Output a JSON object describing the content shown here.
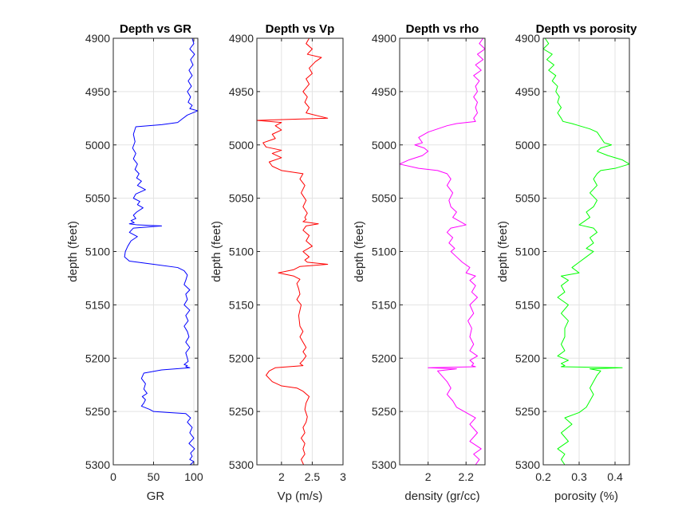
{
  "chart_data": [
    {
      "type": "line",
      "title": "Depth vs GR",
      "xlabel": "GR",
      "ylabel": "depth (feet)",
      "xlim": [
        0,
        105
      ],
      "ylim": [
        4900,
        5300
      ],
      "y_reversed": true,
      "grid": true,
      "xticks": [
        0,
        50,
        100
      ],
      "xtick_labels": [
        "0",
        "50",
        "100"
      ],
      "yticks": [
        4900,
        4950,
        5000,
        5050,
        5100,
        5150,
        5200,
        5250,
        5300
      ],
      "ytick_labels": [
        "4900",
        "4950",
        "5000",
        "5050",
        "5100",
        "5150",
        "5200",
        "5250",
        "5300"
      ],
      "series": [
        {
          "color": "#0000ff",
          "x": [
            98,
            100,
            95,
            101,
            96,
            99,
            94,
            98,
            93,
            97,
            92,
            96,
            93,
            98,
            95,
            105,
            92,
            85,
            80,
            60,
            28,
            25,
            27,
            24,
            28,
            25,
            30,
            27,
            32,
            29,
            35,
            30,
            40,
            28,
            25,
            33,
            30,
            37,
            29,
            25,
            28,
            22,
            26,
            20,
            30,
            60,
            25,
            20,
            30,
            22,
            18,
            15,
            14,
            20,
            50,
            80,
            88,
            92,
            90,
            88,
            95,
            90,
            92,
            88,
            95,
            90,
            93,
            88,
            92,
            94,
            90,
            95,
            90,
            92,
            93,
            88,
            92,
            90,
            95,
            60,
            38,
            35,
            40,
            38,
            42,
            36,
            40,
            38,
            35,
            45,
            50,
            70,
            90,
            96,
            92,
            98,
            95,
            100,
            94,
            101,
            96,
            98,
            95,
            100,
            97,
            95
          ],
          "y": [
            4900,
            4905,
            4910,
            4915,
            4920,
            4925,
            4930,
            4935,
            4940,
            4945,
            4950,
            4955,
            4960,
            4963,
            4966,
            4968,
            4972,
            4976,
            4979,
            4981,
            4983,
            4990,
            4997,
            5003,
            5008,
            5013,
            5018,
            5023,
            5027,
            5031,
            5034,
            5038,
            5042,
            5046,
            5050,
            5053,
            5056,
            5059,
            5063,
            5066,
            5069,
            5071,
            5073,
            5074,
            5075,
            5076,
            5078,
            5082,
            5086,
            5090,
            5095,
            5100,
            5105,
            5109,
            5112,
            5115,
            5118,
            5122,
            5127,
            5131,
            5136,
            5140,
            5145,
            5150,
            5155,
            5160,
            5165,
            5170,
            5175,
            5180,
            5185,
            5190,
            5195,
            5200,
            5203,
            5206,
            5207,
            5208,
            5209,
            5211,
            5214,
            5219,
            5224,
            5229,
            5233,
            5236,
            5239,
            5242,
            5245,
            5248,
            5250,
            5251,
            5252,
            5256,
            5260,
            5265,
            5270,
            5275,
            5280,
            5285,
            5289,
            5292,
            5295,
            5297,
            5299,
            5300
          ]
        }
      ]
    },
    {
      "type": "line",
      "title": "Depth vs Vp",
      "xlabel": "Vp (m/s)",
      "ylabel": "depth (feet)",
      "xlim": [
        1.6,
        3.0
      ],
      "ylim": [
        4900,
        5300
      ],
      "y_reversed": true,
      "grid": true,
      "xticks": [
        2,
        2.5,
        3
      ],
      "xtick_labels": [
        "2",
        "2.5",
        "3"
      ],
      "yticks": [
        4900,
        4950,
        5000,
        5050,
        5100,
        5150,
        5200,
        5250,
        5300
      ],
      "ytick_labels": [
        "4900",
        "4950",
        "5000",
        "5050",
        "5100",
        "5150",
        "5200",
        "5250",
        "5300"
      ],
      "series": [
        {
          "color": "#ff0000",
          "x": [
            2.45,
            2.4,
            2.5,
            2.42,
            2.65,
            2.55,
            2.45,
            2.5,
            2.4,
            2.45,
            2.35,
            2.42,
            2.38,
            2.45,
            2.4,
            2.75,
            1.6,
            2.0,
            1.9,
            2.0,
            1.85,
            1.9,
            1.7,
            1.75,
            2.0,
            1.85,
            2.0,
            1.8,
            1.85,
            2.0,
            2.35,
            2.3,
            2.38,
            2.32,
            2.4,
            2.35,
            2.42,
            2.38,
            2.4,
            2.35,
            2.6,
            2.4,
            2.35,
            2.45,
            2.4,
            2.5,
            2.35,
            2.45,
            2.38,
            2.42,
            2.75,
            2.3,
            2.2,
            1.95,
            2.2,
            2.3,
            2.25,
            2.28,
            2.3,
            2.25,
            2.32,
            2.28,
            2.3,
            2.35,
            2.3,
            2.35,
            2.4,
            2.35,
            2.4,
            2.35,
            2.3,
            2.35,
            1.9,
            1.8,
            1.75,
            1.85,
            2.0,
            2.25,
            2.35,
            2.45,
            2.4,
            2.38,
            2.42,
            2.4,
            2.35,
            2.38,
            2.32,
            2.38,
            2.35,
            2.38,
            2.32,
            2.36
          ],
          "y": [
            4900,
            4905,
            4910,
            4915,
            4918,
            4922,
            4928,
            4933,
            4938,
            4943,
            4950,
            4955,
            4960,
            4965,
            4970,
            4975,
            4977,
            4979,
            4982,
            4986,
            4990,
            4994,
            4998,
            5002,
            5005,
            5008,
            5012,
            5016,
            5020,
            5024,
            5027,
            5032,
            5038,
            5045,
            5052,
            5058,
            5064,
            5068,
            5070,
            5072,
            5074,
            5076,
            5080,
            5085,
            5090,
            5095,
            5100,
            5105,
            5108,
            5110,
            5112,
            5114,
            5117,
            5120,
            5123,
            5126,
            5130,
            5135,
            5140,
            5145,
            5150,
            5160,
            5170,
            5175,
            5180,
            5185,
            5190,
            5194,
            5198,
            5202,
            5205,
            5207,
            5209,
            5212,
            5216,
            5222,
            5226,
            5228,
            5231,
            5236,
            5242,
            5248,
            5255,
            5260,
            5265,
            5270,
            5275,
            5280,
            5285,
            5290,
            5295,
            5300
          ]
        }
      ]
    },
    {
      "type": "line",
      "title": "Depth vs rho",
      "xlabel": "density (gr/cc)",
      "ylabel": "depth (feet)",
      "xlim": [
        1.85,
        2.3
      ],
      "ylim": [
        4900,
        5300
      ],
      "y_reversed": true,
      "grid": true,
      "xticks": [
        2,
        2.2
      ],
      "xtick_labels": [
        "2",
        "2.2"
      ],
      "yticks": [
        4900,
        4950,
        5000,
        5050,
        5100,
        5150,
        5200,
        5250,
        5300
      ],
      "ytick_labels": [
        "4900",
        "4950",
        "5000",
        "5050",
        "5100",
        "5150",
        "5200",
        "5250",
        "5300"
      ],
      "series": [
        {
          "color": "#ff00ff",
          "x": [
            2.29,
            2.27,
            2.3,
            2.26,
            2.29,
            2.25,
            2.28,
            2.24,
            2.27,
            2.25,
            2.26,
            2.24,
            2.26,
            2.25,
            2.26,
            2.24,
            2.25,
            2.15,
            2.1,
            2.05,
            2.0,
            1.95,
            1.97,
            1.93,
            1.98,
            2.0,
            1.97,
            1.9,
            1.85,
            1.95,
            2.05,
            2.1,
            2.12,
            2.1,
            2.13,
            2.11,
            2.12,
            2.15,
            2.13,
            2.2,
            2.12,
            2.1,
            2.13,
            2.11,
            2.14,
            2.12,
            2.15,
            2.18,
            2.22,
            2.2,
            2.25,
            2.22,
            2.25,
            2.23,
            2.26,
            2.22,
            2.24,
            2.21,
            2.23,
            2.22,
            2.24,
            2.22,
            2.26,
            2.22,
            2.24,
            2.23,
            2.25,
            2.0,
            2.15,
            2.05,
            2.07,
            2.1,
            2.12,
            2.1,
            2.13,
            2.15,
            2.2,
            2.25,
            2.22,
            2.26,
            2.22,
            2.28,
            2.24,
            2.27,
            2.25
          ],
          "y": [
            4900,
            4905,
            4910,
            4915,
            4920,
            4925,
            4930,
            4935,
            4940,
            4945,
            4950,
            4955,
            4960,
            4965,
            4970,
            4975,
            4978,
            4980,
            4982,
            4985,
            4988,
            4993,
            4998,
            5000,
            5003,
            5006,
            5010,
            5014,
            5018,
            5022,
            5024,
            5027,
            5032,
            5038,
            5045,
            5052,
            5058,
            5063,
            5068,
            5075,
            5078,
            5082,
            5087,
            5092,
            5097,
            5100,
            5105,
            5110,
            5115,
            5120,
            5123,
            5127,
            5132,
            5138,
            5143,
            5150,
            5158,
            5165,
            5172,
            5180,
            5187,
            5193,
            5198,
            5202,
            5205,
            5207,
            5208,
            5209,
            5210,
            5212,
            5216,
            5222,
            5228,
            5234,
            5240,
            5246,
            5251,
            5256,
            5262,
            5270,
            5278,
            5285,
            5290,
            5295,
            5300
          ]
        }
      ]
    },
    {
      "type": "line",
      "title": "Depth vs porosity",
      "xlabel": "porosity (%)",
      "ylabel": "depth (feet)",
      "xlim": [
        0.2,
        0.44
      ],
      "ylim": [
        4900,
        5300
      ],
      "y_reversed": true,
      "grid": true,
      "xticks": [
        0.2,
        0.3,
        0.4
      ],
      "xtick_labels": [
        "0.2",
        "0.3",
        "0.4"
      ],
      "yticks": [
        4900,
        4950,
        5000,
        5050,
        5100,
        5150,
        5200,
        5250,
        5300
      ],
      "ytick_labels": [
        "4900",
        "4950",
        "5000",
        "5050",
        "5100",
        "5150",
        "5200",
        "5250",
        "5300"
      ],
      "series": [
        {
          "color": "#00ff00",
          "x": [
            0.205,
            0.215,
            0.2,
            0.225,
            0.21,
            0.23,
            0.215,
            0.235,
            0.225,
            0.24,
            0.235,
            0.245,
            0.24,
            0.25,
            0.24,
            0.25,
            0.255,
            0.28,
            0.3,
            0.33,
            0.35,
            0.36,
            0.37,
            0.39,
            0.36,
            0.35,
            0.38,
            0.42,
            0.44,
            0.4,
            0.36,
            0.35,
            0.34,
            0.35,
            0.33,
            0.35,
            0.34,
            0.32,
            0.33,
            0.3,
            0.34,
            0.35,
            0.33,
            0.34,
            0.32,
            0.34,
            0.32,
            0.3,
            0.28,
            0.3,
            0.25,
            0.27,
            0.25,
            0.26,
            0.24,
            0.27,
            0.25,
            0.27,
            0.26,
            0.26,
            0.25,
            0.26,
            0.24,
            0.27,
            0.25,
            0.26,
            0.25,
            0.42,
            0.33,
            0.36,
            0.35,
            0.34,
            0.33,
            0.34,
            0.33,
            0.32,
            0.3,
            0.26,
            0.28,
            0.25,
            0.27,
            0.24,
            0.26,
            0.25,
            0.26
          ],
          "y": [
            4900,
            4905,
            4910,
            4915,
            4920,
            4925,
            4930,
            4935,
            4940,
            4945,
            4950,
            4955,
            4960,
            4965,
            4970,
            4975,
            4978,
            4980,
            4982,
            4985,
            4988,
            4993,
            4998,
            5000,
            5003,
            5006,
            5010,
            5014,
            5018,
            5022,
            5024,
            5027,
            5032,
            5038,
            5045,
            5052,
            5058,
            5063,
            5068,
            5075,
            5078,
            5082,
            5087,
            5092,
            5097,
            5100,
            5105,
            5110,
            5115,
            5120,
            5123,
            5127,
            5132,
            5138,
            5143,
            5150,
            5158,
            5165,
            5172,
            5180,
            5187,
            5193,
            5198,
            5202,
            5205,
            5207,
            5208,
            5209,
            5210,
            5212,
            5216,
            5222,
            5228,
            5234,
            5240,
            5246,
            5251,
            5256,
            5262,
            5270,
            5278,
            5285,
            5290,
            5295,
            5300
          ]
        }
      ]
    }
  ]
}
